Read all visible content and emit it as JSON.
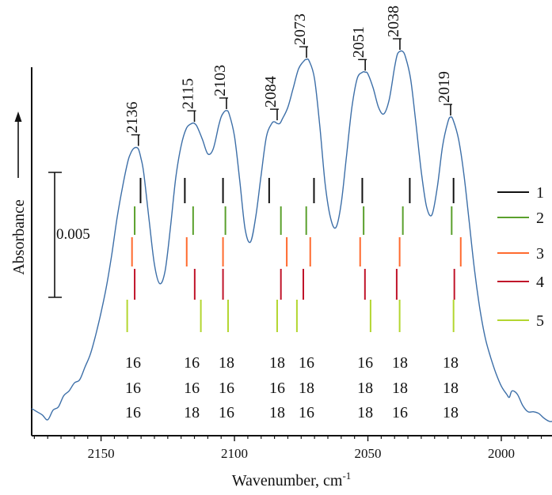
{
  "chart_data": {
    "type": "line",
    "xlabel": "Wavenumber, cm",
    "xlabel_superscript": "-1",
    "ylabel": "Absorbance",
    "xlim": [
      2176,
      1981
    ],
    "x_ticks": [
      2150,
      2100,
      2050,
      2000
    ],
    "x_tick_labels": [
      "2150",
      "2100",
      "2050",
      "2000"
    ],
    "grid": false,
    "spectrum_color": "#3d6fa8",
    "scale_bar": {
      "label": "0.005",
      "absorbance": 0.005
    },
    "spectrum": {
      "x": [
        2176,
        2174,
        2172,
        2170,
        2168,
        2166,
        2164,
        2162,
        2160,
        2158,
        2156,
        2154,
        2152,
        2150,
        2148,
        2146,
        2144,
        2142,
        2140,
        2139,
        2138,
        2137,
        2136,
        2135,
        2134,
        2132,
        2130,
        2128,
        2126,
        2124,
        2122,
        2120,
        2118,
        2116,
        2115,
        2114,
        2112,
        2110,
        2108,
        2106,
        2105,
        2104,
        2103,
        2102,
        2100,
        2098,
        2096,
        2094,
        2092,
        2090,
        2088,
        2086,
        2085,
        2084,
        2083,
        2082,
        2080,
        2078,
        2076,
        2074,
        2073,
        2072,
        2070,
        2068,
        2066,
        2064,
        2062,
        2060,
        2058,
        2056,
        2054,
        2052,
        2051,
        2050,
        2048,
        2046,
        2044,
        2042,
        2040,
        2039,
        2038,
        2037,
        2036,
        2034,
        2032,
        2030,
        2028,
        2026,
        2024,
        2022,
        2020,
        2019,
        2018,
        2016,
        2014,
        2012,
        2010,
        2008,
        2006,
        2004,
        2002,
        2000,
        1998,
        1997,
        1996,
        1994,
        1992,
        1990,
        1988,
        1986,
        1984,
        1982,
        1981
      ],
      "y": [
        0.0012,
        0.001,
        0.0008,
        0.0005,
        0.0011,
        0.0013,
        0.002,
        0.0023,
        0.0028,
        0.003,
        0.0038,
        0.0046,
        0.0058,
        0.0072,
        0.0088,
        0.0108,
        0.0131,
        0.015,
        0.0166,
        0.0171,
        0.0174,
        0.0175,
        0.0174,
        0.0168,
        0.0159,
        0.013,
        0.0102,
        0.009,
        0.0098,
        0.0125,
        0.0156,
        0.0176,
        0.0187,
        0.019,
        0.019,
        0.0188,
        0.018,
        0.0171,
        0.0174,
        0.0188,
        0.0194,
        0.0197,
        0.0198,
        0.0196,
        0.0182,
        0.0154,
        0.0124,
        0.0116,
        0.0132,
        0.0158,
        0.0182,
        0.019,
        0.0191,
        0.019,
        0.019,
        0.0193,
        0.02,
        0.0212,
        0.0224,
        0.0229,
        0.023,
        0.0229,
        0.0218,
        0.0188,
        0.0152,
        0.0131,
        0.0125,
        0.014,
        0.017,
        0.02,
        0.0218,
        0.0222,
        0.0222,
        0.0221,
        0.0212,
        0.02,
        0.0196,
        0.0205,
        0.0225,
        0.0233,
        0.0235,
        0.0235,
        0.0232,
        0.0218,
        0.019,
        0.016,
        0.0138,
        0.0133,
        0.015,
        0.0176,
        0.0191,
        0.0194,
        0.0192,
        0.018,
        0.0158,
        0.0128,
        0.0098,
        0.0074,
        0.0056,
        0.0044,
        0.0034,
        0.0026,
        0.0021,
        0.0019,
        0.0023,
        0.0021,
        0.0014,
        0.001,
        0.001,
        0.0009,
        0.0006,
        0.0004,
        0.0004
      ]
    },
    "peak_labels": [
      {
        "x": 2136,
        "label": "2136"
      },
      {
        "x": 2115,
        "label": "2115"
      },
      {
        "x": 2103,
        "label": "2103"
      },
      {
        "x": 2084,
        "label": "2084"
      },
      {
        "x": 2073,
        "label": "2073"
      },
      {
        "x": 2051,
        "label": "2051"
      },
      {
        "x": 2038,
        "label": "2038"
      },
      {
        "x": 2019,
        "label": "2019"
      }
    ],
    "stick_series": [
      {
        "name": "1",
        "color": "#111111",
        "x": [
          2135.2,
          2118.6,
          2104.3,
          2087.0,
          2070.2,
          2052.1,
          2034.3,
          2017.9
        ]
      },
      {
        "name": "2",
        "color": "#5aa02c",
        "x": [
          2137.4,
          2115.5,
          2103.4,
          2082.6,
          2073.1,
          2051.6,
          2036.9,
          2018.6
        ]
      },
      {
        "name": "3",
        "color": "#ff6a2e",
        "x": [
          2138.4,
          2117.9,
          2104.3,
          2080.4,
          2071.6,
          2052.9,
          2038.1,
          2015.2
        ]
      },
      {
        "name": "4",
        "color": "#c0142a",
        "x": [
          2137.4,
          2114.9,
          2104.3,
          2082.6,
          2074.2,
          2051.1,
          2039.2,
          2017.6
        ]
      },
      {
        "name": "5",
        "color": "#b3d630",
        "x": [
          2140.2,
          2112.6,
          2102.4,
          2084.0,
          2076.6,
          2049.0,
          2038.1,
          2017.9
        ]
      }
    ],
    "isotopologue_labels": [
      {
        "x": 2138,
        "rows": [
          "16",
          "16",
          "16"
        ]
      },
      {
        "x": 2116,
        "rows": [
          "16",
          "16",
          "18"
        ]
      },
      {
        "x": 2103,
        "rows": [
          "18",
          "16",
          "16"
        ]
      },
      {
        "x": 2084,
        "rows": [
          "18",
          "16",
          "18"
        ]
      },
      {
        "x": 2073,
        "rows": [
          "16",
          "18",
          "16"
        ]
      },
      {
        "x": 2051,
        "rows": [
          "16",
          "18",
          "18"
        ]
      },
      {
        "x": 2038,
        "rows": [
          "18",
          "18",
          "16"
        ]
      },
      {
        "x": 2019,
        "rows": [
          "18",
          "18",
          "18"
        ]
      }
    ],
    "legend": {
      "position": "right",
      "entries": [
        {
          "label": "1",
          "color": "#111111"
        },
        {
          "label": "2",
          "color": "#5aa02c"
        },
        {
          "label": "3",
          "color": "#ff6a2e"
        },
        {
          "label": "4",
          "color": "#c0142a"
        },
        {
          "label": "5",
          "color": "#b3d630"
        }
      ]
    }
  }
}
